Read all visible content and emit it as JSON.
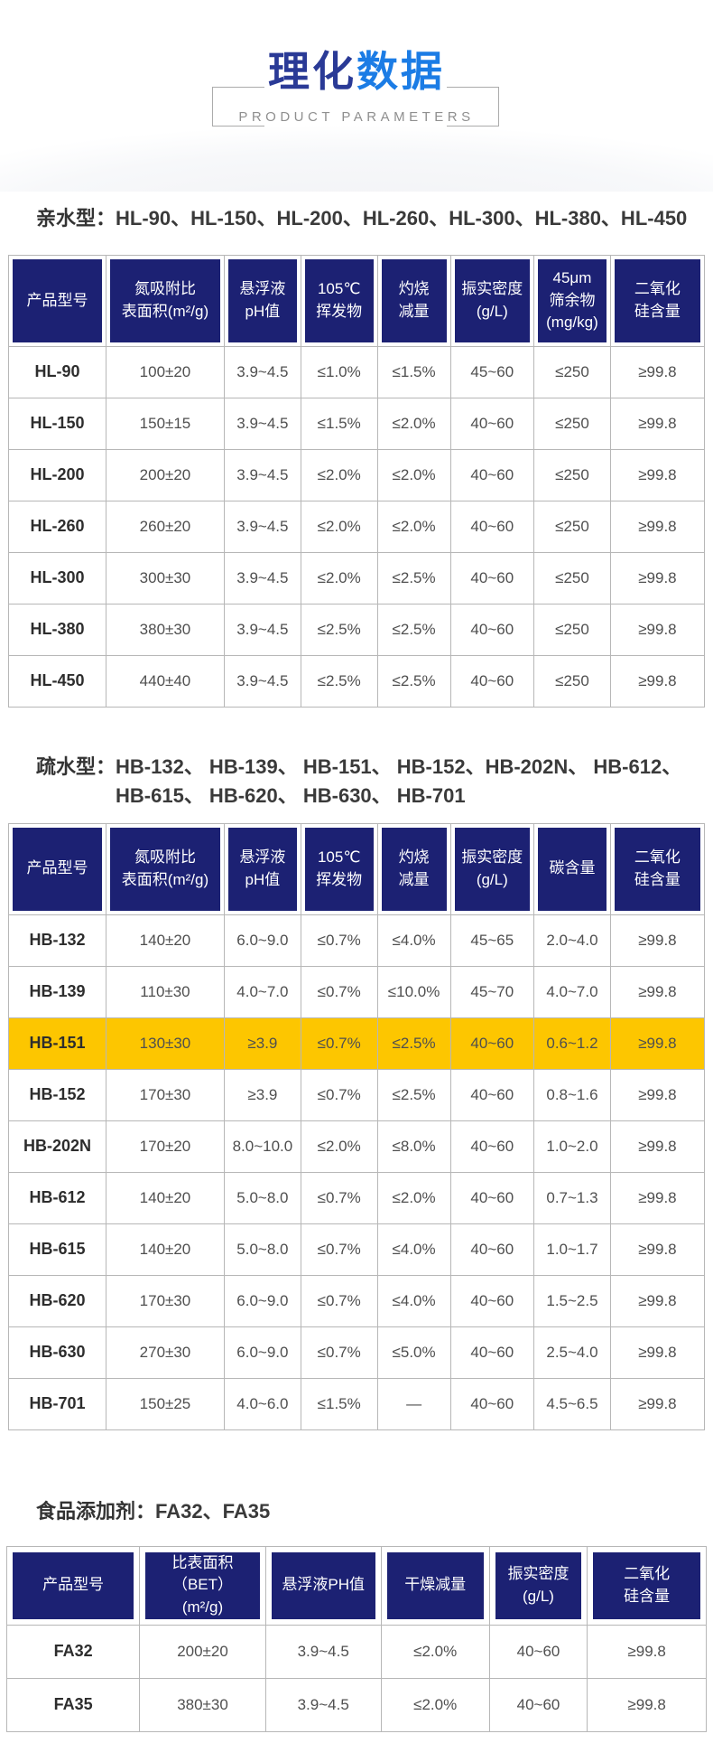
{
  "page": {
    "title_zh_primary": "理化",
    "title_zh_accent": "数据",
    "subtitle": "PRODUCT PARAMETERS"
  },
  "colors": {
    "header_navy": "#1C2173",
    "title_navy": "#2A3A96",
    "accent_blue": "#1B7CE5",
    "highlight_yellow": "#FDC600"
  },
  "sections": {
    "hydrophilic": {
      "label": "亲水型：",
      "models_line1": "HL-90、HL-150、HL-200、HL-260、HL-300、HL-380、HL-450",
      "models_line2": ""
    },
    "hydrophobic": {
      "label": "疏水型：",
      "models_line1": "HB-132、 HB-139、 HB-151、 HB-152、HB-202N、 HB-612、",
      "models_line2": "HB-615、 HB-620、 HB-630、 HB-701"
    },
    "food_additive": {
      "label": "食品添加剂：",
      "models_line1": "FA32、FA35",
      "models_line2": ""
    }
  },
  "tables": {
    "hydrophilic": {
      "columns": [
        "产品型号",
        "氮吸附比\n表面积(m²/g)",
        "悬浮液\npH值",
        "105℃\n挥发物",
        "灼烧\n减量",
        "振实密度\n(g/L)",
        "45μm\n筛余物\n(mg/kg)",
        "二氧化\n硅含量"
      ],
      "rows": [
        {
          "model": "HL-90",
          "highlight": false,
          "cells": [
            "100±20",
            "3.9~4.5",
            "≤1.0%",
            "≤1.5%",
            "45~60",
            "≤250",
            "≥99.8"
          ]
        },
        {
          "model": "HL-150",
          "highlight": false,
          "cells": [
            "150±15",
            "3.9~4.5",
            "≤1.5%",
            "≤2.0%",
            "40~60",
            "≤250",
            "≥99.8"
          ]
        },
        {
          "model": "HL-200",
          "highlight": false,
          "cells": [
            "200±20",
            "3.9~4.5",
            "≤2.0%",
            "≤2.0%",
            "40~60",
            "≤250",
            "≥99.8"
          ]
        },
        {
          "model": "HL-260",
          "highlight": false,
          "cells": [
            "260±20",
            "3.9~4.5",
            "≤2.0%",
            "≤2.0%",
            "40~60",
            "≤250",
            "≥99.8"
          ]
        },
        {
          "model": "HL-300",
          "highlight": false,
          "cells": [
            "300±30",
            "3.9~4.5",
            "≤2.0%",
            "≤2.5%",
            "40~60",
            "≤250",
            "≥99.8"
          ]
        },
        {
          "model": "HL-380",
          "highlight": false,
          "cells": [
            "380±30",
            "3.9~4.5",
            "≤2.5%",
            "≤2.5%",
            "40~60",
            "≤250",
            "≥99.8"
          ]
        },
        {
          "model": "HL-450",
          "highlight": false,
          "cells": [
            "440±40",
            "3.9~4.5",
            "≤2.5%",
            "≤2.5%",
            "40~60",
            "≤250",
            "≥99.8"
          ]
        }
      ]
    },
    "hydrophobic": {
      "columns": [
        "产品型号",
        "氮吸附比\n表面积(m²/g)",
        "悬浮液\npH值",
        "105℃\n挥发物",
        "灼烧\n减量",
        "振实密度\n(g/L)",
        "碳含量",
        "二氧化\n硅含量"
      ],
      "rows": [
        {
          "model": "HB-132",
          "highlight": false,
          "cells": [
            "140±20",
            "6.0~9.0",
            "≤0.7%",
            "≤4.0%",
            "45~65",
            "2.0~4.0",
            "≥99.8"
          ]
        },
        {
          "model": "HB-139",
          "highlight": false,
          "cells": [
            "110±30",
            "4.0~7.0",
            "≤0.7%",
            "≤10.0%",
            "45~70",
            "4.0~7.0",
            "≥99.8"
          ]
        },
        {
          "model": "HB-151",
          "highlight": true,
          "cells": [
            "130±30",
            "≥3.9",
            "≤0.7%",
            "≤2.5%",
            "40~60",
            "0.6~1.2",
            "≥99.8"
          ]
        },
        {
          "model": "HB-152",
          "highlight": false,
          "cells": [
            "170±30",
            "≥3.9",
            "≤0.7%",
            "≤2.5%",
            "40~60",
            "0.8~1.6",
            "≥99.8"
          ]
        },
        {
          "model": "HB-202N",
          "highlight": false,
          "cells": [
            "170±20",
            "8.0~10.0",
            "≤2.0%",
            "≤8.0%",
            "40~60",
            "1.0~2.0",
            "≥99.8"
          ]
        },
        {
          "model": "HB-612",
          "highlight": false,
          "cells": [
            "140±20",
            "5.0~8.0",
            "≤0.7%",
            "≤2.0%",
            "40~60",
            "0.7~1.3",
            "≥99.8"
          ]
        },
        {
          "model": "HB-615",
          "highlight": false,
          "cells": [
            "140±20",
            "5.0~8.0",
            "≤0.7%",
            "≤4.0%",
            "40~60",
            "1.0~1.7",
            "≥99.8"
          ]
        },
        {
          "model": "HB-620",
          "highlight": false,
          "cells": [
            "170±30",
            "6.0~9.0",
            "≤0.7%",
            "≤4.0%",
            "40~60",
            "1.5~2.5",
            "≥99.8"
          ]
        },
        {
          "model": "HB-630",
          "highlight": false,
          "cells": [
            "270±30",
            "6.0~9.0",
            "≤0.7%",
            "≤5.0%",
            "40~60",
            "2.5~4.0",
            "≥99.8"
          ]
        },
        {
          "model": "HB-701",
          "highlight": false,
          "cells": [
            "150±25",
            "4.0~6.0",
            "≤1.5%",
            "—",
            "40~60",
            "4.5~6.5",
            "≥99.8"
          ]
        }
      ]
    },
    "food_additive": {
      "columns": [
        "产品型号",
        "比表面积（BET）\n(m²/g)",
        "悬浮液PH值",
        "干燥减量",
        "振实密度\n(g/L)",
        "二氧化\n硅含量"
      ],
      "rows": [
        {
          "model": "FA32",
          "highlight": false,
          "cells": [
            "200±20",
            "3.9~4.5",
            "≤2.0%",
            "40~60",
            "≥99.8"
          ]
        },
        {
          "model": "FA35",
          "highlight": false,
          "cells": [
            "380±30",
            "3.9~4.5",
            "≤2.0%",
            "40~60",
            "≥99.8"
          ]
        }
      ]
    }
  }
}
